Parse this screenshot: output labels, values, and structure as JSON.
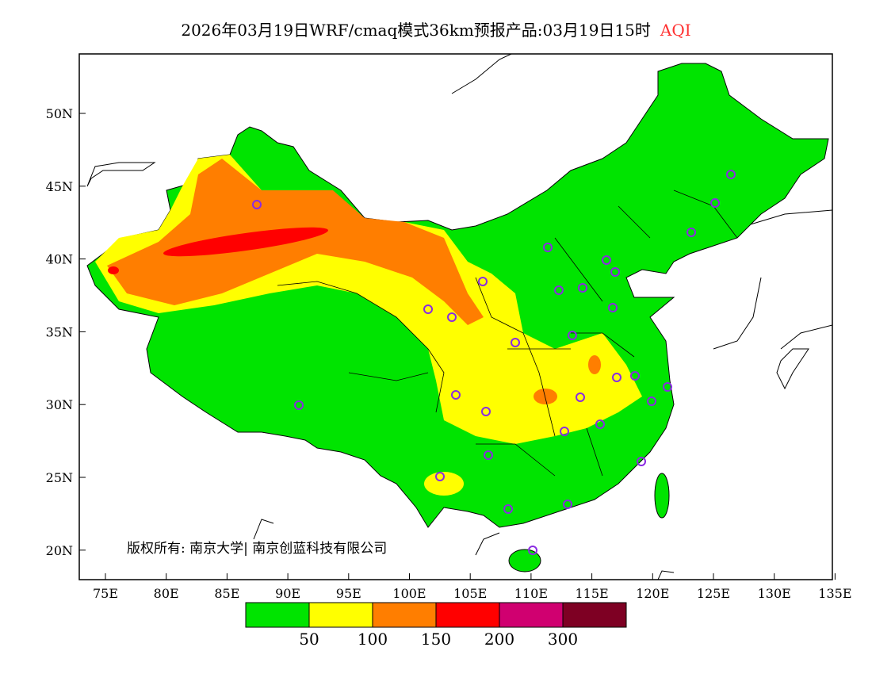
{
  "title": {
    "main": "2026年03月19日WRF/cmaq模式36km预报产品:03月19日15时",
    "variable": "AQI"
  },
  "axes": {
    "lat_ticks": [
      "50N",
      "45N",
      "40N",
      "35N",
      "30N",
      "25N",
      "20N"
    ],
    "lon_ticks": [
      "75E",
      "80E",
      "85E",
      "90E",
      "95E",
      "100E",
      "105E",
      "110E",
      "115E",
      "120E",
      "125E",
      "130E",
      "135E"
    ]
  },
  "copyright": "版权所有: 南京大学| 南京创蓝科技有限公司",
  "legend": {
    "colors": [
      "#00e400",
      "#ffff00",
      "#ff7e00",
      "#ff0000",
      "#d00070",
      "#7e0023"
    ],
    "labels": [
      "50",
      "100",
      "150",
      "200",
      "300"
    ]
  }
}
